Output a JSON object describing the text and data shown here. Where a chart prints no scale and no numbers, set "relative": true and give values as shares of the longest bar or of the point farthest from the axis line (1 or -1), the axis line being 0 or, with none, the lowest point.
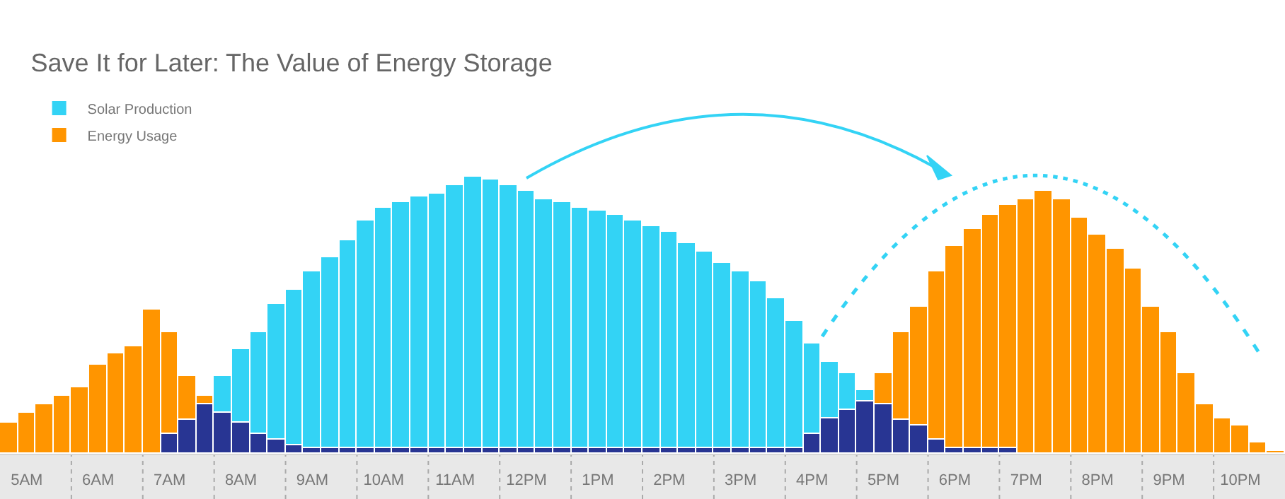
{
  "chart_data": {
    "type": "bar",
    "title": "Save It for Later: The Value of Energy Storage",
    "relative": true,
    "stacked": true,
    "legend": "top left",
    "categories": [
      null,
      "5AM",
      null,
      null,
      null,
      "6AM",
      null,
      null,
      null,
      "7AM",
      null,
      null,
      null,
      "8AM",
      null,
      null,
      null,
      "9AM",
      null,
      null,
      null,
      "10AM",
      null,
      null,
      null,
      "11AM",
      null,
      null,
      null,
      "12PM",
      null,
      null,
      null,
      "1PM",
      null,
      null,
      null,
      "2PM",
      null,
      null,
      null,
      "3PM",
      null,
      null,
      null,
      "4PM",
      null,
      null,
      null,
      "5PM",
      null,
      null,
      null,
      "6PM",
      null,
      null,
      null,
      "7PM",
      null,
      null,
      null,
      "8PM",
      null,
      null,
      null,
      "9PM",
      null,
      null,
      null,
      "10PM",
      null,
      null
    ],
    "series": [
      {
        "color": "#283593",
        "values": [
          null,
          null,
          null,
          null,
          null,
          null,
          null,
          null,
          null,
          0.07,
          0.12,
          0.18,
          0.15,
          0.11,
          0.07,
          0.05,
          0.03,
          0.02,
          0.02,
          0.02,
          0.02,
          0.02,
          0.02,
          0.02,
          0.02,
          0.02,
          0.02,
          0.02,
          0.02,
          0.02,
          0.02,
          0.02,
          0.02,
          0.02,
          0.02,
          0.02,
          0.02,
          0.02,
          0.02,
          0.02,
          0.02,
          0.02,
          0.02,
          0.02,
          0.02,
          0.07,
          0.13,
          0.16,
          0.19,
          0.18,
          0.12,
          0.1,
          0.05,
          0.02,
          0.02,
          0.02,
          0.02,
          null,
          null,
          null,
          null,
          null,
          null,
          null,
          null,
          null,
          null,
          null,
          null,
          null,
          null,
          null
        ]
      },
      {
        "name": "Solar Production",
        "color": "#33d3f5",
        "values": [
          null,
          null,
          null,
          null,
          null,
          null,
          null,
          null,
          null,
          null,
          null,
          null,
          0.13,
          0.27,
          0.37,
          0.49,
          0.56,
          0.64,
          0.69,
          0.75,
          0.82,
          0.87,
          0.89,
          0.91,
          0.92,
          0.95,
          0.98,
          0.97,
          0.95,
          0.93,
          0.9,
          0.89,
          0.87,
          0.86,
          0.84,
          0.82,
          0.8,
          0.78,
          0.74,
          0.71,
          0.67,
          0.64,
          0.6,
          0.54,
          0.46,
          0.33,
          0.2,
          0.13,
          0.04,
          null,
          null,
          null,
          null,
          null,
          null,
          null,
          null,
          null,
          null,
          null,
          null,
          null,
          null,
          null,
          null,
          null,
          null,
          null,
          null,
          null,
          null,
          null
        ]
      },
      {
        "name": "Energy Usage",
        "color": "#ff9500",
        "values": [
          0.11,
          0.15,
          0.18,
          0.21,
          0.24,
          0.32,
          0.36,
          0.39,
          0.52,
          0.37,
          0.16,
          0.03,
          null,
          null,
          null,
          null,
          null,
          null,
          null,
          null,
          null,
          null,
          null,
          null,
          null,
          null,
          null,
          null,
          null,
          null,
          null,
          null,
          null,
          null,
          null,
          null,
          null,
          null,
          null,
          null,
          null,
          null,
          null,
          null,
          null,
          null,
          null,
          null,
          null,
          0.11,
          0.32,
          0.43,
          0.61,
          0.73,
          0.79,
          0.84,
          0.88,
          0.92,
          0.95,
          0.92,
          0.85,
          0.79,
          0.74,
          0.67,
          0.53,
          0.44,
          0.29,
          0.18,
          0.13,
          0.1,
          0.04,
          0.01
        ]
      }
    ]
  }
}
